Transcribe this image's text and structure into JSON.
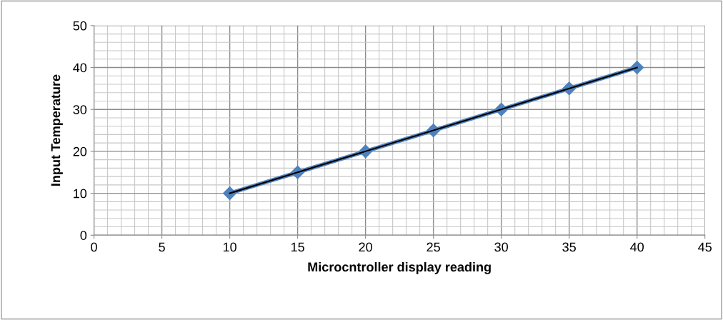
{
  "chart_data": {
    "type": "line",
    "xlabel": "Microcntroller display reading",
    "ylabel": "Input Temperature",
    "series": [
      {
        "color": "#4f81bd",
        "marker": "diamond",
        "x": [
          10,
          15,
          20,
          25,
          30,
          35,
          40
        ],
        "values": [
          10,
          15,
          20,
          25,
          30,
          35,
          40
        ]
      },
      {
        "color": "#000000",
        "marker": "none",
        "x": [
          10,
          40
        ],
        "values": [
          10,
          40
        ]
      }
    ],
    "xlim": [
      0,
      45
    ],
    "xticks": [
      0,
      5,
      10,
      15,
      20,
      25,
      30,
      35,
      40,
      45
    ],
    "ylim": [
      0,
      50
    ],
    "yticks": [
      0,
      10,
      20,
      30,
      40,
      50
    ],
    "grid": true
  }
}
